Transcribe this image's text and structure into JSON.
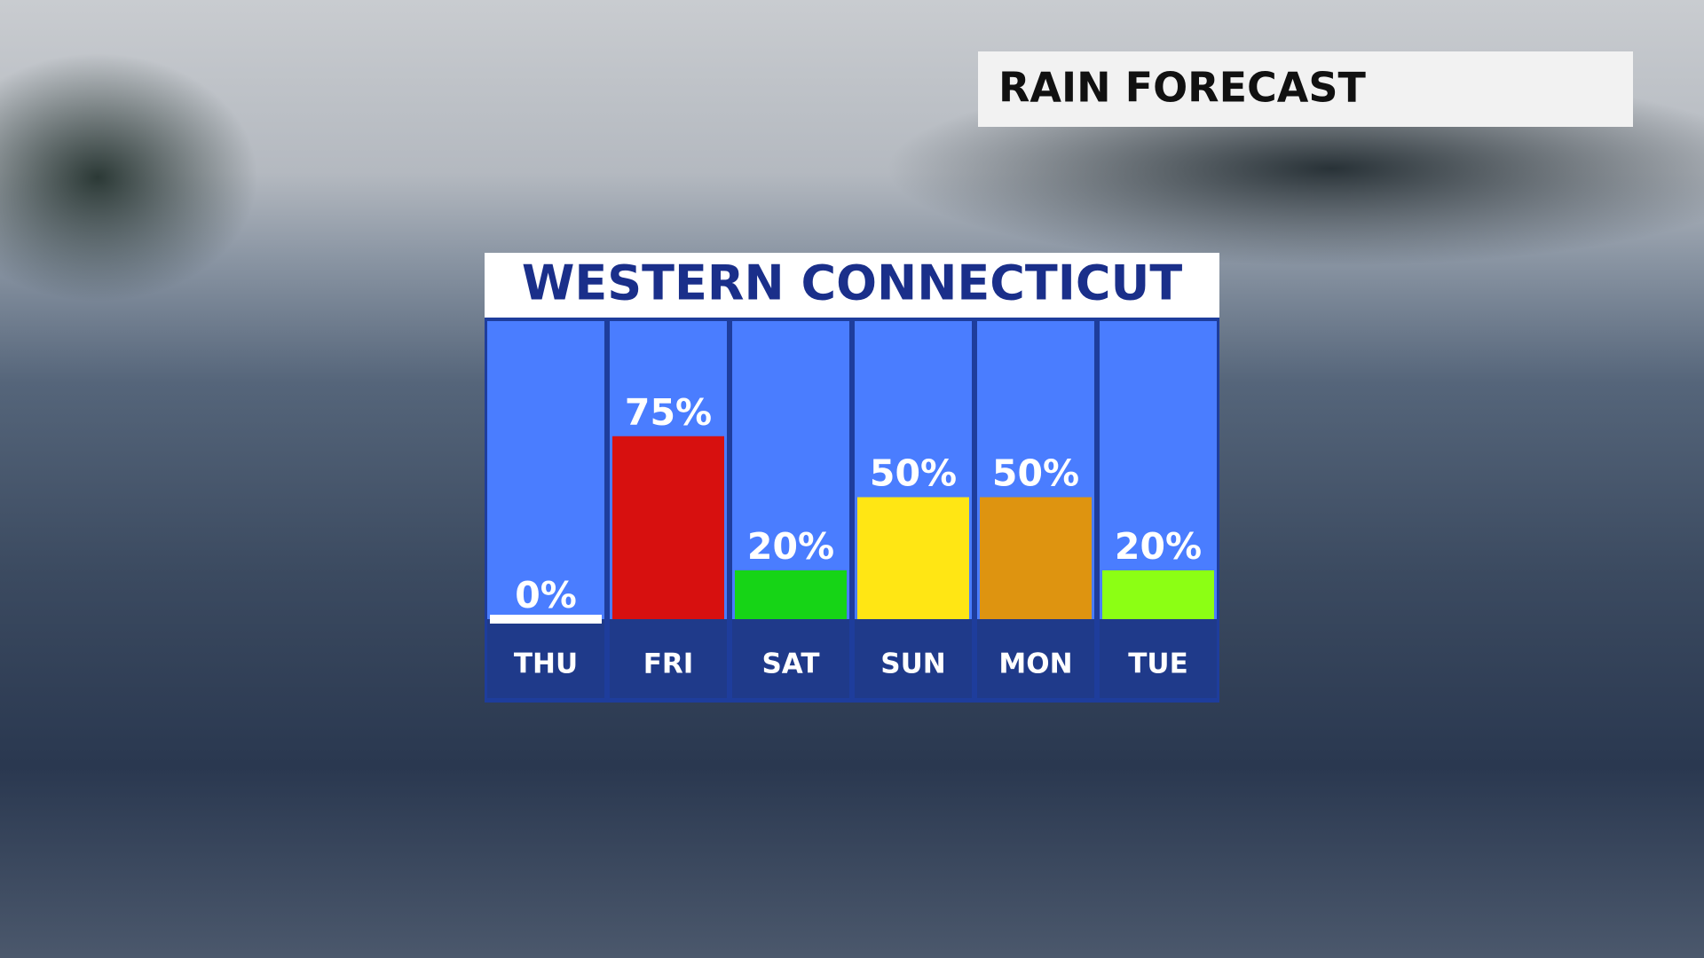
{
  "header": {
    "title": "RAIN FORECAST"
  },
  "chart_data": {
    "type": "bar",
    "title": "WESTERN CONNECTICUT",
    "categories": [
      "THU",
      "FRI",
      "SAT",
      "SUN",
      "MON",
      "TUE"
    ],
    "values": [
      0,
      75,
      20,
      50,
      50,
      20
    ],
    "value_labels": [
      "0%",
      "75%",
      "20%",
      "50%",
      "50%",
      "20%"
    ],
    "colors": [
      "#ffffff",
      "#d7100f",
      "#16d416",
      "#ffe614",
      "#de9410",
      "#8cff14"
    ],
    "ylim": [
      0,
      100
    ]
  }
}
